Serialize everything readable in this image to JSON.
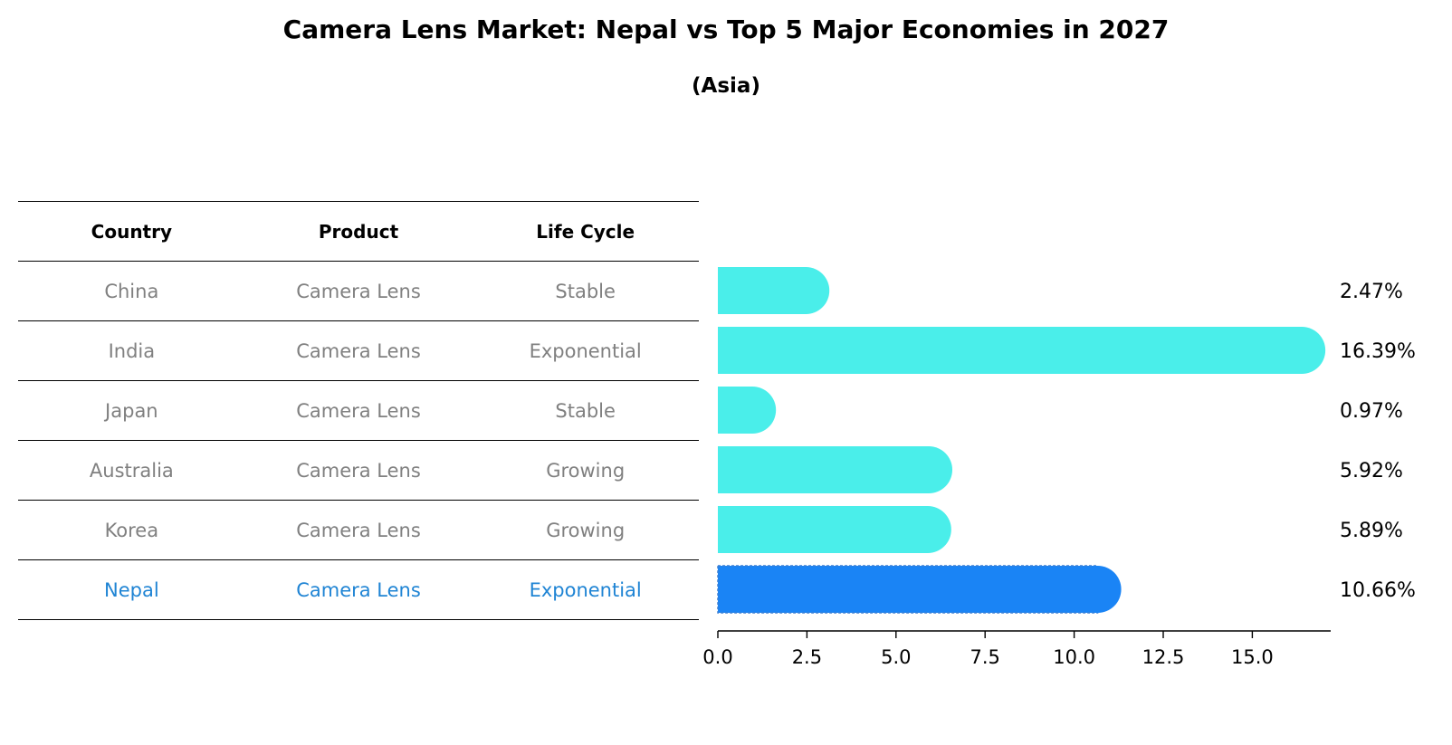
{
  "title": "Camera Lens Market: Nepal vs Top 5 Major Economies in 2027",
  "subtitle": "(Asia)",
  "table": {
    "headers": [
      "Country",
      "Product",
      "Life Cycle"
    ],
    "rows": [
      [
        "China",
        "Camera Lens",
        "Stable"
      ],
      [
        "India",
        "Camera Lens",
        "Exponential"
      ],
      [
        "Japan",
        "Camera Lens",
        "Stable"
      ],
      [
        "Australia",
        "Camera Lens",
        "Growing"
      ],
      [
        "Korea",
        "Camera Lens",
        "Growing"
      ],
      [
        "Nepal",
        "Camera Lens",
        "Exponential"
      ]
    ]
  },
  "chart_data": {
    "type": "bar",
    "orientation": "horizontal",
    "categories": [
      "China",
      "India",
      "Japan",
      "Australia",
      "Korea",
      "Nepal"
    ],
    "values": [
      2.47,
      16.39,
      0.97,
      5.92,
      5.89,
      10.66
    ],
    "labels": [
      "2.47%",
      "16.39%",
      "0.97%",
      "5.92%",
      "5.89%",
      "10.66%"
    ],
    "xlim": [
      0,
      17.2
    ],
    "xticks": [
      0.0,
      2.5,
      5.0,
      7.5,
      10.0,
      12.5,
      15.0
    ],
    "xtick_labels": [
      "0.0",
      "2.5",
      "5.0",
      "7.5",
      "10.0",
      "12.5",
      "15.0"
    ],
    "highlight": "Nepal",
    "colors": {
      "default": "#4aeeea",
      "highlight": "#1a84f5",
      "highlight_text": "#1f84d4"
    }
  }
}
